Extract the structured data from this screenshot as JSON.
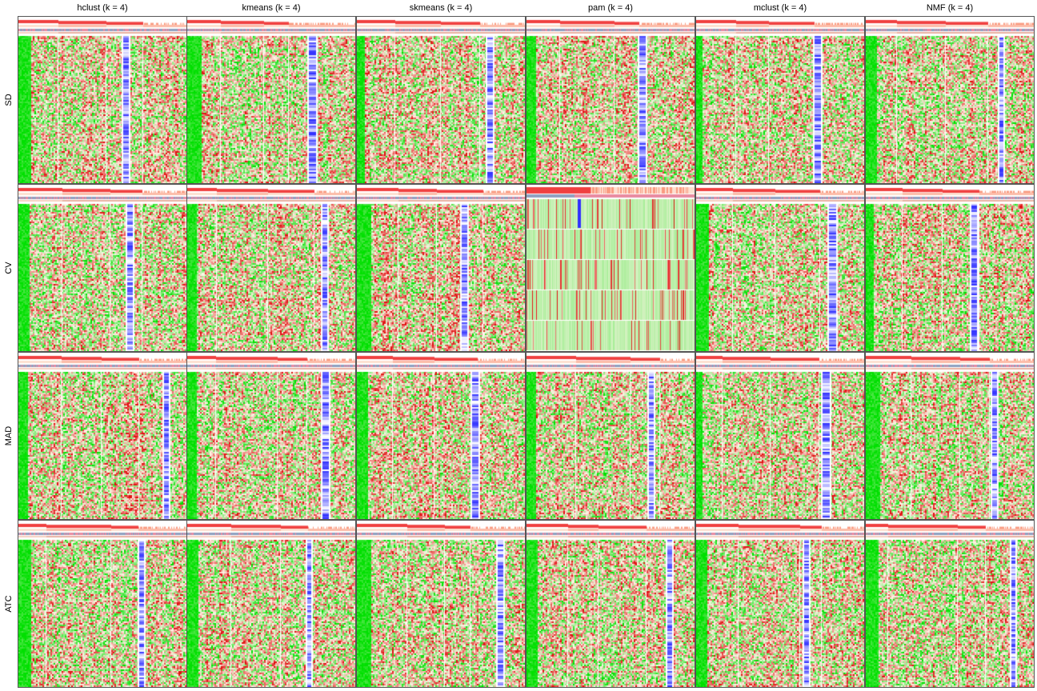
{
  "chart_data": {
    "type": "heatmap",
    "columns": [
      "hclust (k = 4)",
      "kmeans (k = 4)",
      "skmeans (k = 4)",
      "pam (k = 4)",
      "mclust (k = 4)",
      "NMF (k = 4)"
    ],
    "rows": [
      "SD",
      "CV",
      "MAD",
      "ATC"
    ],
    "k": 4,
    "colors": {
      "low": "#00e000",
      "mid": "#fff6e8",
      "high": "#e01010",
      "class_bar_1": "#f04040",
      "class_bar_2": "#fa9a80",
      "group_bar_a": "#8ea0c0",
      "group_bar_b": "#e88aa0",
      "membership": "#3030ff"
    },
    "layout_style": {
      "CV|pam (k = 4)": "block"
    }
  }
}
